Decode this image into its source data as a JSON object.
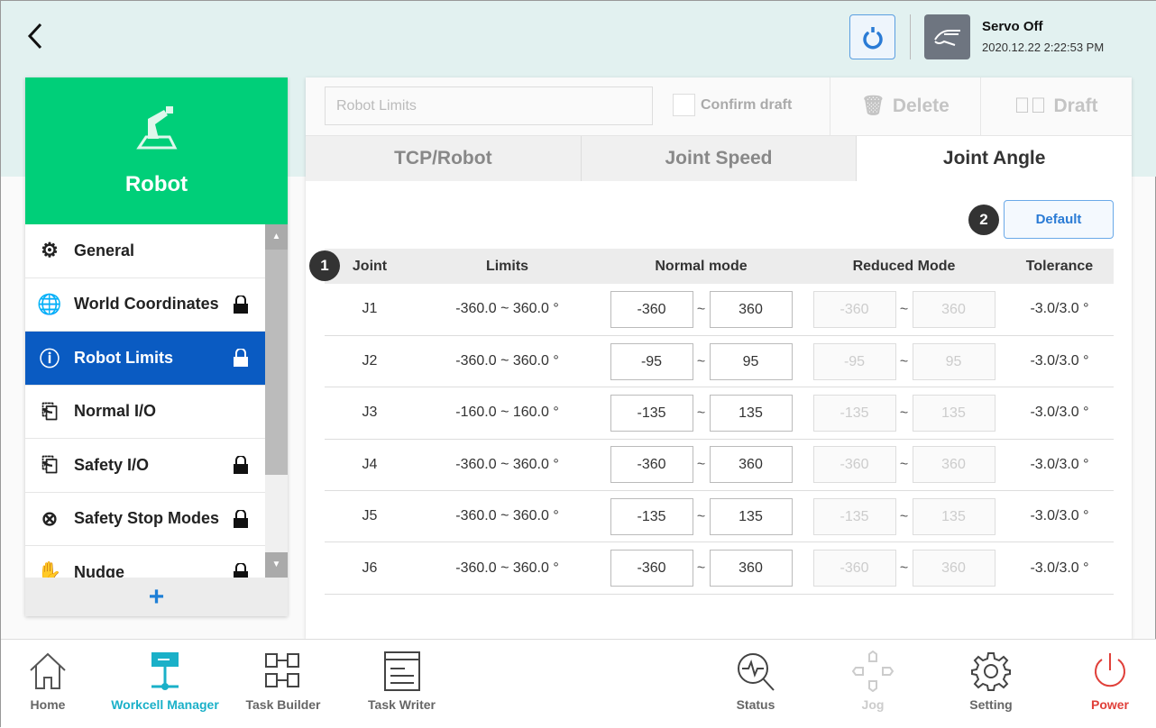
{
  "header": {
    "back_icon": "chevron-left-icon",
    "servo_status": "Servo Off",
    "datetime": "2020.12.22 2:22:53 PM"
  },
  "sidebar": {
    "title": "Robot",
    "accent": "#00cf79",
    "items": [
      {
        "label": "General",
        "icon": "robot-arm-icon",
        "locked": false
      },
      {
        "label": "World Coordinates",
        "icon": "globe-icon",
        "locked": true
      },
      {
        "label": "Robot Limits",
        "icon": "limit-icon",
        "locked": true,
        "selected": true
      },
      {
        "label": "Normal I/O",
        "icon": "io-icon",
        "locked": false
      },
      {
        "label": "Safety I/O",
        "icon": "io-icon",
        "locked": true
      },
      {
        "label": "Safety Stop Modes",
        "icon": "stop-icon",
        "locked": true
      },
      {
        "label": "Nudge",
        "icon": "hand-icon",
        "locked": true
      }
    ],
    "add_label": "+"
  },
  "toolbar": {
    "name_placeholder": "Robot Limits",
    "confirm_draft": "Confirm draft",
    "delete": "Delete",
    "draft": "Draft"
  },
  "tabs": [
    "TCP/Robot",
    "Joint Speed",
    "Joint Angle"
  ],
  "default_button": "Default",
  "badges": [
    "1",
    "2"
  ],
  "table": {
    "headers": [
      "Joint",
      "Limits",
      "Normal mode",
      "Reduced Mode",
      "Tolerance"
    ],
    "sep": "~",
    "rows": [
      {
        "joint": "J1",
        "limits": "-360.0 ~ 360.0 °",
        "nmin": "-360",
        "nmax": "360",
        "rmin": "-360",
        "rmax": "360",
        "tol": "-3.0/3.0 °"
      },
      {
        "joint": "J2",
        "limits": "-360.0 ~ 360.0 °",
        "nmin": "-95",
        "nmax": "95",
        "rmin": "-95",
        "rmax": "95",
        "tol": "-3.0/3.0 °"
      },
      {
        "joint": "J3",
        "limits": "-160.0 ~ 160.0 °",
        "nmin": "-135",
        "nmax": "135",
        "rmin": "-135",
        "rmax": "135",
        "tol": "-3.0/3.0 °"
      },
      {
        "joint": "J4",
        "limits": "-360.0 ~ 360.0 °",
        "nmin": "-360",
        "nmax": "360",
        "rmin": "-360",
        "rmax": "360",
        "tol": "-3.0/3.0 °"
      },
      {
        "joint": "J5",
        "limits": "-360.0 ~ 360.0 °",
        "nmin": "-135",
        "nmax": "135",
        "rmin": "-135",
        "rmax": "135",
        "tol": "-3.0/3.0 °"
      },
      {
        "joint": "J6",
        "limits": "-360.0 ~ 360.0 °",
        "nmin": "-360",
        "nmax": "360",
        "rmin": "-360",
        "rmax": "360",
        "tol": "-3.0/3.0 °"
      }
    ]
  },
  "nav": [
    {
      "label": "Home"
    },
    {
      "label": "Workcell Manager",
      "active": true,
      "color": "#1ab0c8"
    },
    {
      "label": "Task Builder"
    },
    {
      "label": "Task Writer"
    },
    {
      "label": "Status"
    },
    {
      "label": "Jog",
      "disabled": true
    },
    {
      "label": "Setting"
    },
    {
      "label": "Power",
      "color": "#e0403a"
    }
  ]
}
